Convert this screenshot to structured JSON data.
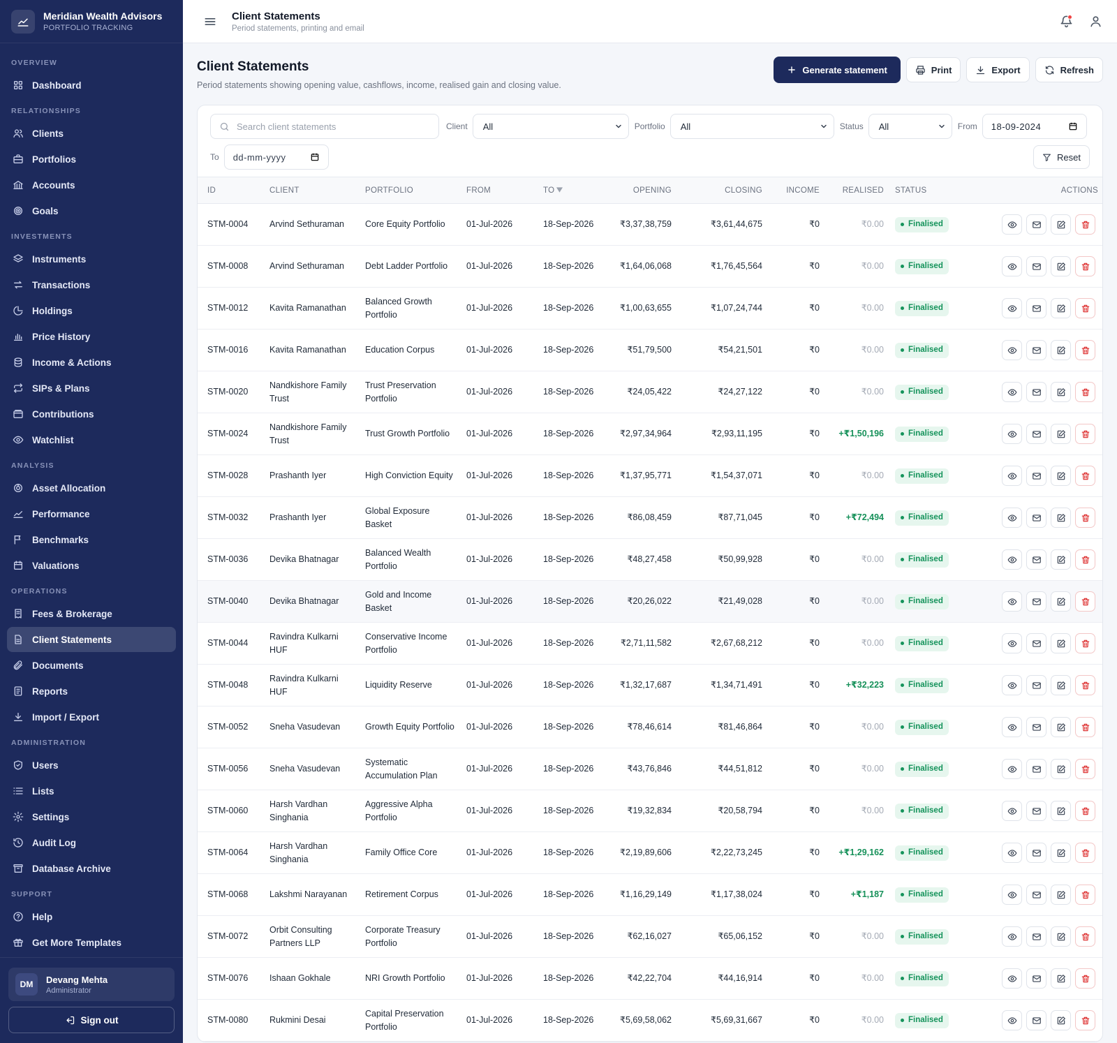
{
  "brand": {
    "name": "Meridian Wealth Advisors",
    "sub": "PORTFOLIO TRACKING"
  },
  "nav": {
    "sections": [
      {
        "title": "OVERVIEW",
        "items": [
          {
            "label": "Dashboard",
            "icon": "grid-icon"
          }
        ]
      },
      {
        "title": "RELATIONSHIPS",
        "items": [
          {
            "label": "Clients",
            "icon": "users-icon"
          },
          {
            "label": "Portfolios",
            "icon": "briefcase-icon"
          },
          {
            "label": "Accounts",
            "icon": "bank-icon"
          },
          {
            "label": "Goals",
            "icon": "target-icon"
          }
        ]
      },
      {
        "title": "INVESTMENTS",
        "items": [
          {
            "label": "Instruments",
            "icon": "layers-icon"
          },
          {
            "label": "Transactions",
            "icon": "arrows-icon"
          },
          {
            "label": "Holdings",
            "icon": "pie-icon"
          },
          {
            "label": "Price History",
            "icon": "bar-chart-icon"
          },
          {
            "label": "Income & Actions",
            "icon": "coins-icon"
          },
          {
            "label": "SIPs & Plans",
            "icon": "repeat-icon"
          },
          {
            "label": "Contributions",
            "icon": "wallet-icon"
          },
          {
            "label": "Watchlist",
            "icon": "eye-icon"
          }
        ]
      },
      {
        "title": "ANALYSIS",
        "items": [
          {
            "label": "Asset Allocation",
            "icon": "allocation-icon"
          },
          {
            "label": "Performance",
            "icon": "trend-icon"
          },
          {
            "label": "Benchmarks",
            "icon": "flag-icon"
          },
          {
            "label": "Valuations",
            "icon": "calendar-icon"
          }
        ]
      },
      {
        "title": "OPERATIONS",
        "items": [
          {
            "label": "Fees & Brokerage",
            "icon": "receipt-icon"
          },
          {
            "label": "Client Statements",
            "icon": "document-icon",
            "active": true
          },
          {
            "label": "Documents",
            "icon": "paperclip-icon"
          },
          {
            "label": "Reports",
            "icon": "report-icon"
          },
          {
            "label": "Import / Export",
            "icon": "download-icon"
          }
        ]
      },
      {
        "title": "ADMINISTRATION",
        "items": [
          {
            "label": "Users",
            "icon": "shield-icon"
          },
          {
            "label": "Lists",
            "icon": "list-icon"
          },
          {
            "label": "Settings",
            "icon": "gear-icon"
          },
          {
            "label": "Audit Log",
            "icon": "history-icon"
          },
          {
            "label": "Database Archive",
            "icon": "archive-icon"
          }
        ]
      },
      {
        "title": "SUPPORT",
        "items": [
          {
            "label": "Help",
            "icon": "help-icon"
          },
          {
            "label": "Get More Templates",
            "icon": "gift-icon"
          }
        ]
      }
    ]
  },
  "user": {
    "initials": "DM",
    "name": "Devang Mehta",
    "role": "Administrator",
    "signout": "Sign out"
  },
  "topbar": {
    "title": "Client Statements",
    "subtitle": "Period statements, printing and email"
  },
  "page": {
    "title": "Client Statements",
    "description": "Period statements showing opening value, cashflows, income, realised gain and closing value.",
    "buttons": {
      "generate": "Generate statement",
      "print": "Print",
      "export": "Export",
      "refresh": "Refresh"
    }
  },
  "filters": {
    "search_placeholder": "Search client statements",
    "client_label": "Client",
    "client_value": "All",
    "portfolio_label": "Portfolio",
    "portfolio_value": "All",
    "status_label": "Status",
    "status_value": "All",
    "from_label": "From",
    "from_value": "18-09-2024",
    "to_label": "To",
    "to_value": "dd-mm-yyyy",
    "reset": "Reset"
  },
  "table": {
    "columns": {
      "id": "ID",
      "client": "CLIENT",
      "portfolio": "PORTFOLIO",
      "from": "FROM",
      "to": "TO",
      "opening": "OPENING",
      "closing": "CLOSING",
      "income": "INCOME",
      "realised": "REALISED",
      "status": "STATUS",
      "actions": "ACTIONS"
    },
    "rows": [
      {
        "id": "STM-0004",
        "client": "Arvind Sethuraman",
        "portfolio": "Core Equity Portfolio",
        "from": "01-Jul-2026",
        "to": "18-Sep-2026",
        "opening": "₹3,37,38,759",
        "closing": "₹3,61,44,675",
        "income": "₹0",
        "realised": "₹0.00",
        "status": "Finalised"
      },
      {
        "id": "STM-0008",
        "client": "Arvind Sethuraman",
        "portfolio": "Debt Ladder Portfolio",
        "from": "01-Jul-2026",
        "to": "18-Sep-2026",
        "opening": "₹1,64,06,068",
        "closing": "₹1,76,45,564",
        "income": "₹0",
        "realised": "₹0.00",
        "status": "Finalised"
      },
      {
        "id": "STM-0012",
        "client": "Kavita Ramanathan",
        "portfolio": "Balanced Growth Portfolio",
        "from": "01-Jul-2026",
        "to": "18-Sep-2026",
        "opening": "₹1,00,63,655",
        "closing": "₹1,07,24,744",
        "income": "₹0",
        "realised": "₹0.00",
        "status": "Finalised"
      },
      {
        "id": "STM-0016",
        "client": "Kavita Ramanathan",
        "portfolio": "Education Corpus",
        "from": "01-Jul-2026",
        "to": "18-Sep-2026",
        "opening": "₹51,79,500",
        "closing": "₹54,21,501",
        "income": "₹0",
        "realised": "₹0.00",
        "status": "Finalised"
      },
      {
        "id": "STM-0020",
        "client": "Nandkishore Family Trust",
        "portfolio": "Trust Preservation Portfolio",
        "from": "01-Jul-2026",
        "to": "18-Sep-2026",
        "opening": "₹24,05,422",
        "closing": "₹24,27,122",
        "income": "₹0",
        "realised": "₹0.00",
        "status": "Finalised"
      },
      {
        "id": "STM-0024",
        "client": "Nandkishore Family Trust",
        "portfolio": "Trust Growth Portfolio",
        "from": "01-Jul-2026",
        "to": "18-Sep-2026",
        "opening": "₹2,97,34,964",
        "closing": "₹2,93,11,195",
        "income": "₹0",
        "realised": "+₹1,50,196",
        "status": "Finalised"
      },
      {
        "id": "STM-0028",
        "client": "Prashanth Iyer",
        "portfolio": "High Conviction Equity",
        "from": "01-Jul-2026",
        "to": "18-Sep-2026",
        "opening": "₹1,37,95,771",
        "closing": "₹1,54,37,071",
        "income": "₹0",
        "realised": "₹0.00",
        "status": "Finalised"
      },
      {
        "id": "STM-0032",
        "client": "Prashanth Iyer",
        "portfolio": "Global Exposure Basket",
        "from": "01-Jul-2026",
        "to": "18-Sep-2026",
        "opening": "₹86,08,459",
        "closing": "₹87,71,045",
        "income": "₹0",
        "realised": "+₹72,494",
        "status": "Finalised"
      },
      {
        "id": "STM-0036",
        "client": "Devika Bhatnagar",
        "portfolio": "Balanced Wealth Portfolio",
        "from": "01-Jul-2026",
        "to": "18-Sep-2026",
        "opening": "₹48,27,458",
        "closing": "₹50,99,928",
        "income": "₹0",
        "realised": "₹0.00",
        "status": "Finalised"
      },
      {
        "id": "STM-0040",
        "client": "Devika Bhatnagar",
        "portfolio": "Gold and Income Basket",
        "from": "01-Jul-2026",
        "to": "18-Sep-2026",
        "opening": "₹20,26,022",
        "closing": "₹21,49,028",
        "income": "₹0",
        "realised": "₹0.00",
        "status": "Finalised"
      },
      {
        "id": "STM-0044",
        "client": "Ravindra Kulkarni HUF",
        "portfolio": "Conservative Income Portfolio",
        "from": "01-Jul-2026",
        "to": "18-Sep-2026",
        "opening": "₹2,71,11,582",
        "closing": "₹2,67,68,212",
        "income": "₹0",
        "realised": "₹0.00",
        "status": "Finalised"
      },
      {
        "id": "STM-0048",
        "client": "Ravindra Kulkarni HUF",
        "portfolio": "Liquidity Reserve",
        "from": "01-Jul-2026",
        "to": "18-Sep-2026",
        "opening": "₹1,32,17,687",
        "closing": "₹1,34,71,491",
        "income": "₹0",
        "realised": "+₹32,223",
        "status": "Finalised"
      },
      {
        "id": "STM-0052",
        "client": "Sneha Vasudevan",
        "portfolio": "Growth Equity Portfolio",
        "from": "01-Jul-2026",
        "to": "18-Sep-2026",
        "opening": "₹78,46,614",
        "closing": "₹81,46,864",
        "income": "₹0",
        "realised": "₹0.00",
        "status": "Finalised"
      },
      {
        "id": "STM-0056",
        "client": "Sneha Vasudevan",
        "portfolio": "Systematic Accumulation Plan",
        "from": "01-Jul-2026",
        "to": "18-Sep-2026",
        "opening": "₹43,76,846",
        "closing": "₹44,51,812",
        "income": "₹0",
        "realised": "₹0.00",
        "status": "Finalised"
      },
      {
        "id": "STM-0060",
        "client": "Harsh Vardhan Singhania",
        "portfolio": "Aggressive Alpha Portfolio",
        "from": "01-Jul-2026",
        "to": "18-Sep-2026",
        "opening": "₹19,32,834",
        "closing": "₹20,58,794",
        "income": "₹0",
        "realised": "₹0.00",
        "status": "Finalised"
      },
      {
        "id": "STM-0064",
        "client": "Harsh Vardhan Singhania",
        "portfolio": "Family Office Core",
        "from": "01-Jul-2026",
        "to": "18-Sep-2026",
        "opening": "₹2,19,89,606",
        "closing": "₹2,22,73,245",
        "income": "₹0",
        "realised": "+₹1,29,162",
        "status": "Finalised"
      },
      {
        "id": "STM-0068",
        "client": "Lakshmi Narayanan",
        "portfolio": "Retirement Corpus",
        "from": "01-Jul-2026",
        "to": "18-Sep-2026",
        "opening": "₹1,16,29,149",
        "closing": "₹1,17,38,024",
        "income": "₹0",
        "realised": "+₹1,187",
        "status": "Finalised"
      },
      {
        "id": "STM-0072",
        "client": "Orbit Consulting Partners LLP",
        "portfolio": "Corporate Treasury Portfolio",
        "from": "01-Jul-2026",
        "to": "18-Sep-2026",
        "opening": "₹62,16,027",
        "closing": "₹65,06,152",
        "income": "₹0",
        "realised": "₹0.00",
        "status": "Finalised"
      },
      {
        "id": "STM-0076",
        "client": "Ishaan Gokhale",
        "portfolio": "NRI Growth Portfolio",
        "from": "01-Jul-2026",
        "to": "18-Sep-2026",
        "opening": "₹42,22,704",
        "closing": "₹44,16,914",
        "income": "₹0",
        "realised": "₹0.00",
        "status": "Finalised"
      },
      {
        "id": "STM-0080",
        "client": "Rukmini Desai",
        "portfolio": "Capital Preservation Portfolio",
        "from": "01-Jul-2026",
        "to": "18-Sep-2026",
        "opening": "₹5,69,58,062",
        "closing": "₹5,69,31,667",
        "income": "₹0",
        "realised": "₹0.00",
        "status": "Finalised"
      }
    ]
  },
  "colors": {
    "sidebar": "#1d2a5c",
    "primary": "#1d2a5c",
    "success": "#15935b",
    "danger": "#dc2626"
  }
}
